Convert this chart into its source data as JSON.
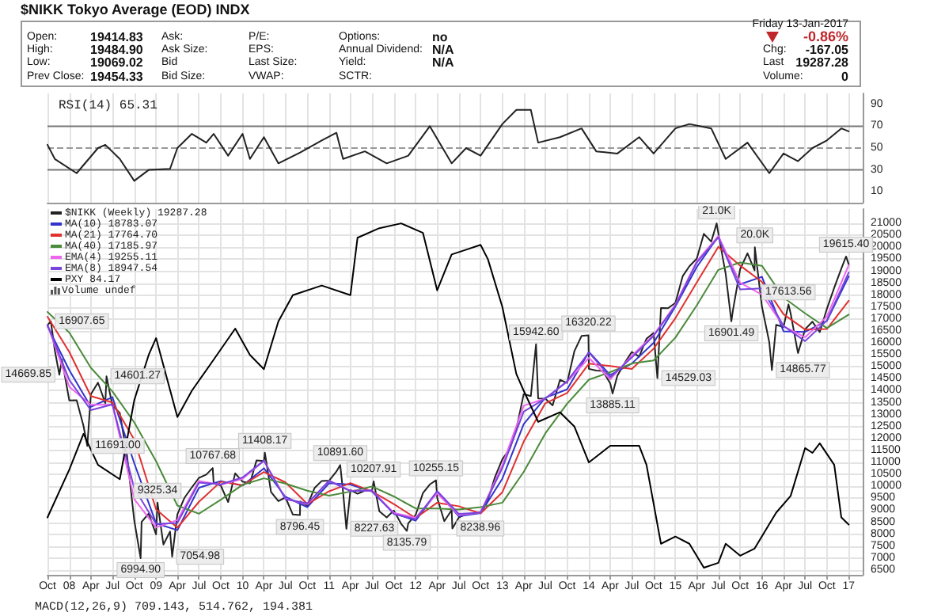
{
  "chart_data": [
    {
      "type": "other",
      "title": "$NIKK Tokyo Average (EOD) INDX",
      "annotations": [
        "Open:",
        "19414.83",
        "Ask:",
        "P/E:",
        "Options:",
        "no",
        "High:",
        "19484.90",
        "Ask Size:",
        "EPS:",
        "Annual Dividend:",
        "N/A",
        "Low:",
        "19069.02",
        "Bid",
        "Last Size:",
        "Yield:",
        "N/A",
        "Prev Close:",
        "19454.33",
        "Bid Size:",
        "VWAP:",
        "SCTR:",
        "Friday 13-Jan-2017",
        "-0.86%",
        "Chg:",
        "-167.05",
        "Last",
        "19287.28",
        "Volume:",
        "0"
      ]
    },
    {
      "type": "line",
      "title": "RSI(14) 65.31",
      "color": "#222222",
      "x": [
        "2007-10",
        "2007-11",
        "2008-02",
        "2008-05",
        "2008-06",
        "2008-08",
        "2008-10",
        "2008-12",
        "2009-03",
        "2009-04",
        "2009-06",
        "2009-08",
        "2009-09",
        "2009-11",
        "2010-01",
        "2010-02",
        "2010-04",
        "2010-06",
        "2010-09",
        "2010-12",
        "2011-02",
        "2011-03",
        "2011-06",
        "2011-09",
        "2011-12",
        "2012-03",
        "2012-06",
        "2012-08",
        "2012-10",
        "2013-01",
        "2013-03",
        "2013-05",
        "2013-06",
        "2013-09",
        "2013-12",
        "2014-02",
        "2014-05",
        "2014-08",
        "2014-10",
        "2015-01",
        "2015-03",
        "2015-06",
        "2015-08",
        "2015-11",
        "2016-02",
        "2016-04",
        "2016-06",
        "2016-08",
        "2016-10",
        "2016-12",
        "2017-01"
      ],
      "values": [
        53,
        40,
        27,
        50,
        53,
        40,
        20,
        30,
        31,
        50,
        63,
        55,
        63,
        43,
        63,
        40,
        60,
        36,
        46,
        57,
        64,
        40,
        47,
        36,
        43,
        70,
        36,
        50,
        43,
        72,
        85,
        85,
        55,
        60,
        68,
        47,
        45,
        60,
        45,
        68,
        72,
        68,
        40,
        55,
        27,
        45,
        38,
        50,
        57,
        68,
        65.31
      ],
      "ylim": [
        0,
        100
      ],
      "yticks": [
        10,
        30,
        50,
        70,
        90
      ],
      "xlim": [
        "2007-10",
        "2017-03"
      ],
      "xticks": [
        {
          "value": "2007-10",
          "label": null
        },
        {
          "value": "2008-01",
          "label": null
        },
        {
          "value": "2008-04",
          "label": null
        },
        {
          "value": "2008-07",
          "label": null
        },
        {
          "value": "2008-10",
          "label": null
        },
        {
          "value": "2009-01",
          "label": null
        },
        {
          "value": "2009-04",
          "label": null
        },
        {
          "value": "2009-07",
          "label": null
        },
        {
          "value": "2009-10",
          "label": null
        },
        {
          "value": "2010-01",
          "label": null
        },
        {
          "value": "2010-04",
          "label": null
        },
        {
          "value": "2010-07",
          "label": null
        },
        {
          "value": "2010-10",
          "label": null
        },
        {
          "value": "2011-01",
          "label": null
        },
        {
          "value": "2011-04",
          "label": null
        },
        {
          "value": "2011-07",
          "label": null
        },
        {
          "value": "2011-10",
          "label": null
        },
        {
          "value": "2012-01",
          "label": null
        },
        {
          "value": "2012-04",
          "label": null
        },
        {
          "value": "2012-07",
          "label": null
        },
        {
          "value": "2012-10",
          "label": null
        },
        {
          "value": "2013-01",
          "label": null
        },
        {
          "value": "2013-04",
          "label": null
        },
        {
          "value": "2013-07",
          "label": null
        },
        {
          "value": "2013-10",
          "label": null
        },
        {
          "value": "2014-01",
          "label": null
        },
        {
          "value": "2014-04",
          "label": null
        },
        {
          "value": "2014-07",
          "label": null
        },
        {
          "value": "2014-10",
          "label": null
        },
        {
          "value": "2015-01",
          "label": null
        },
        {
          "value": "2015-04",
          "label": null
        },
        {
          "value": "2015-07",
          "label": null
        },
        {
          "value": "2015-10",
          "label": null
        },
        {
          "value": "2016-01",
          "label": null
        },
        {
          "value": "2016-04",
          "label": null
        },
        {
          "value": "2016-07",
          "label": null
        },
        {
          "value": "2016-10",
          "label": null
        },
        {
          "value": "2017-01",
          "label": null
        }
      ],
      "tick_labels": "y",
      "grid": "x",
      "ref_lines": [
        {
          "axis": "y",
          "value": 30,
          "color": "#777777"
        },
        {
          "axis": "y",
          "value": 50,
          "color": "#999999",
          "line_style": "dashed"
        },
        {
          "axis": "y",
          "value": 70,
          "color": "#777777"
        }
      ]
    },
    {
      "type": "line",
      "legend": "top left",
      "grid": true,
      "series": [
        {
          "name": "$NIKK (Weekly) 19287.28",
          "color": "#222222",
          "x": [
            "2007-10",
            "2007-10-15",
            "2007-11",
            "2007-11-20",
            "2007-12",
            "2008-01",
            "2008-02",
            "2008-03",
            "2008-03-17",
            "2008-04",
            "2008-05",
            "2008-06",
            "2008-06-06",
            "2008-07",
            "2008-08",
            "2008-09",
            "2008-10",
            "2008-10-28",
            "2008-11",
            "2008-12",
            "2009-01",
            "2009-01-07",
            "2009-02",
            "2009-03",
            "2009-03-10",
            "2009-04",
            "2009-05",
            "2009-06",
            "2009-07",
            "2009-08",
            "2009-08-28",
            "2009-09",
            "2009-10",
            "2009-11",
            "2009-12",
            "2010-01",
            "2010-02",
            "2010-03",
            "2010-04",
            "2010-04-05",
            "2010-05",
            "2010-06",
            "2010-07",
            "2010-08",
            "2010-08-31",
            "2010-09",
            "2010-10",
            "2010-11",
            "2010-12",
            "2011-01",
            "2011-02",
            "2011-02-17",
            "2011-03",
            "2011-03-15",
            "2011-04",
            "2011-05",
            "2011-06",
            "2011-07",
            "2011-07-08",
            "2011-08",
            "2011-09",
            "2011-10",
            "2011-11",
            "2011-11-25",
            "2011-12",
            "2012-01",
            "2012-02",
            "2012-03",
            "2012-03-27",
            "2012-04",
            "2012-05",
            "2012-06",
            "2012-06-04",
            "2012-07",
            "2012-08",
            "2012-09",
            "2012-10",
            "2012-11",
            "2012-12",
            "2013-01",
            "2013-02",
            "2013-03",
            "2013-04",
            "2013-05",
            "2013-05-23",
            "2013-06",
            "2013-07",
            "2013-08",
            "2013-09",
            "2013-10",
            "2013-11",
            "2013-12",
            "2013-12-30",
            "2014-01",
            "2014-02",
            "2014-03",
            "2014-04",
            "2014-04-11",
            "2014-05",
            "2014-06",
            "2014-07",
            "2014-08",
            "2014-09",
            "2014-10",
            "2014-10-17",
            "2014-11",
            "2014-12",
            "2015-01",
            "2015-02",
            "2015-03",
            "2015-04",
            "2015-05",
            "2015-06",
            "2015-06-24",
            "2015-07",
            "2015-08",
            "2015-08-25",
            "2015-09",
            "2015-10",
            "2015-11",
            "2015-12",
            "2015-12-02",
            "2016-01",
            "2016-02",
            "2016-02-12",
            "2016-03",
            "2016-04",
            "2016-04-22",
            "2016-05",
            "2016-06",
            "2016-07",
            "2016-08",
            "2016-09",
            "2016-10",
            "2016-11",
            "2016-12",
            "2016-12-21",
            "2017-01"
          ],
          "values": [
            16737,
            16907.65,
            15680,
            14669.85,
            15308,
            13592,
            13603,
            12526,
            11691,
            13849,
            14338,
            13481,
            14601.27,
            13376,
            13072,
            11259,
            8576,
            6994.9,
            8512,
            8859,
            7994,
            9325.34,
            7568,
            8109,
            7054.98,
            8828,
            9522,
            9958,
            10356,
            10492,
            10767.68,
            10133,
            10034,
            9345,
            10546,
            10198,
            10126,
            11089,
            11057,
            11408.17,
            9768,
            9382,
            9537,
            8824,
            8796.45,
            9369,
            9202,
            9937,
            10228,
            10237,
            10624,
            10891.6,
            9755,
            8227.63,
            9849,
            9693,
            9816,
            9833,
            10207.91,
            8955,
            8700,
            8988,
            8434,
            8135.79,
            8455,
            8802,
            9723,
            10083,
            10255.15,
            9520,
            8542,
            9006,
            8238.96,
            8695,
            8839,
            8870,
            8928,
            9446,
            10395,
            11138,
            11559,
            12398,
            13860,
            13775,
            15942.6,
            13677,
            13668,
            13389,
            14456,
            14327,
            15662,
            16291,
            16320.22,
            14915,
            14841,
            14828,
            14304,
            13885.11,
            14632,
            15162,
            15621,
            15425,
            16174,
            16414,
            14529.03,
            17460,
            17451,
            17674,
            18798,
            19207,
            19520,
            20563,
            20236,
            21000,
            20585,
            18890,
            16901.49,
            17388,
            19083,
            19747,
            19034,
            20000,
            17518,
            16027,
            14865.77,
            16759,
            16666,
            17613.56,
            17235,
            15576,
            16569,
            16887,
            16450,
            17425,
            18308,
            19114,
            19615.4,
            19287.28
          ]
        },
        {
          "name": "MA(10) 18783.07",
          "color": "#3333cc",
          "x": [
            "2007-10",
            "2008-01",
            "2008-04",
            "2008-07",
            "2008-10",
            "2009-01",
            "2009-04",
            "2009-07",
            "2009-10",
            "2010-01",
            "2010-04",
            "2010-07",
            "2010-10",
            "2011-01",
            "2011-04",
            "2011-07",
            "2011-10",
            "2012-01",
            "2012-04",
            "2012-07",
            "2012-10",
            "2013-01",
            "2013-04",
            "2013-07",
            "2013-10",
            "2014-01",
            "2014-04",
            "2014-07",
            "2014-10",
            "2015-01",
            "2015-04",
            "2015-07",
            "2015-10",
            "2016-01",
            "2016-04",
            "2016-07",
            "2016-10",
            "2017-01"
          ],
          "values": [
            16697,
            14860,
            13326,
            13732,
            10969,
            8455,
            8168,
            9945,
            10220,
            10030,
            10757,
            9562,
            9132,
            10134,
            10076,
            9781,
            8881,
            8564,
            9775,
            8748,
            8879,
            10326,
            12606,
            13707,
            14057,
            15623,
            14658,
            15138,
            16004,
            17528,
            19175,
            20461,
            18454,
            18766,
            16484,
            16460,
            16921,
            18783.07
          ]
        },
        {
          "name": "MA(21) 17764.70",
          "color": "#e03030",
          "x": [
            "2007-10",
            "2008-01",
            "2008-04",
            "2008-07",
            "2008-10",
            "2009-01",
            "2009-04",
            "2009-07",
            "2009-10",
            "2010-01",
            "2010-04",
            "2010-07",
            "2010-10",
            "2011-01",
            "2011-04",
            "2011-07",
            "2011-10",
            "2012-01",
            "2012-04",
            "2012-07",
            "2012-10",
            "2013-01",
            "2013-04",
            "2013-07",
            "2013-10",
            "2014-01",
            "2014-04",
            "2014-07",
            "2014-10",
            "2015-01",
            "2015-04",
            "2015-07",
            "2015-10",
            "2016-01",
            "2016-04",
            "2016-07",
            "2016-10",
            "2017-01"
          ],
          "values": [
            17096,
            15621,
            13776,
            13514,
            11953,
            9040,
            8272,
            9355,
            10195,
            10051,
            10603,
            10167,
            9263,
            9795,
            10139,
            9789,
            9258,
            8676,
            9317,
            9169,
            8868,
            9755,
            11870,
            13476,
            13903,
            15130,
            15036,
            14909,
            15759,
            17035,
            18530,
            20022,
            19236,
            18554,
            17201,
            16561,
            16581,
            17764.7
          ]
        },
        {
          "name": "MA(40) 17185.97",
          "color": "#4a8a3a",
          "x": [
            "2007-10",
            "2008-01",
            "2008-04",
            "2008-07",
            "2008-10",
            "2009-01",
            "2009-04",
            "2009-07",
            "2009-10",
            "2010-01",
            "2010-04",
            "2010-07",
            "2010-10",
            "2011-01",
            "2011-04",
            "2011-07",
            "2011-10",
            "2012-01",
            "2012-04",
            "2012-07",
            "2012-10",
            "2013-01",
            "2013-04",
            "2013-07",
            "2013-10",
            "2014-01",
            "2014-04",
            "2014-07",
            "2014-10",
            "2015-01",
            "2015-04",
            "2015-07",
            "2015-10",
            "2016-01",
            "2016-04",
            "2016-07",
            "2016-10",
            "2017-01"
          ],
          "values": [
            17294,
            16437,
            14961,
            13973,
            12676,
            11052,
            9197,
            8856,
            9444,
            10065,
            10336,
            10116,
            9817,
            9609,
            9781,
            9997,
            9579,
            9075,
            9073,
            9029,
            9134,
            9318,
            10604,
            12213,
            13457,
            14462,
            14779,
            15140,
            15267,
            16224,
            17569,
            19055,
            19363,
            19227,
            17901,
            17237,
            16622,
            17185.97
          ]
        },
        {
          "name": "EMA(4) 19255.11",
          "color": "#ee66ee",
          "x": [
            "2007-10",
            "2008-01",
            "2008-04",
            "2008-07",
            "2008-10",
            "2009-01",
            "2009-04",
            "2009-07",
            "2009-10",
            "2010-01",
            "2010-04",
            "2010-07",
            "2010-10",
            "2011-01",
            "2011-04",
            "2011-07",
            "2011-10",
            "2012-01",
            "2012-04",
            "2012-07",
            "2012-10",
            "2013-01",
            "2013-04",
            "2013-07",
            "2013-10",
            "2014-01",
            "2014-04",
            "2014-07",
            "2014-10",
            "2015-01",
            "2015-04",
            "2015-07",
            "2015-10",
            "2016-01",
            "2016-04",
            "2016-07",
            "2016-10",
            "2017-01"
          ],
          "values": [
            16753,
            14164,
            13408,
            13411,
            9470,
            8282,
            8588,
            10223,
            10067,
            10314,
            11068,
            9485,
            9258,
            10234,
            9818,
            9827,
            8892,
            8686,
            9708,
            8799,
            8909,
            10890,
            13373,
            13671,
            14370,
            15374,
            14479,
            15468,
            16334,
            17600,
            19416,
            20469,
            18518,
            18023,
            16697,
            16238,
            17100,
            19255.11
          ]
        },
        {
          "name": "EMA(8) 18947.54",
          "color": "#7744dd",
          "x": [
            "2007-10",
            "2008-01",
            "2008-04",
            "2008-07",
            "2008-10",
            "2009-01",
            "2009-04",
            "2009-07",
            "2009-10",
            "2010-01",
            "2010-04",
            "2010-07",
            "2010-10",
            "2011-01",
            "2011-04",
            "2011-07",
            "2011-10",
            "2012-01",
            "2012-04",
            "2012-07",
            "2012-10",
            "2013-01",
            "2013-04",
            "2013-07",
            "2013-10",
            "2014-01",
            "2014-04",
            "2014-07",
            "2014-10",
            "2015-01",
            "2015-04",
            "2015-07",
            "2015-10",
            "2016-01",
            "2016-04",
            "2016-07",
            "2016-10",
            "2017-01"
          ],
          "values": [
            16761,
            14450,
            13188,
            13429,
            9918,
            8427,
            8469,
            10157,
            10084,
            10372,
            11073,
            9460,
            9286,
            10233,
            9802,
            9825,
            8844,
            8629,
            9802,
            8851,
            8899,
            10767,
            13129,
            13673,
            14392,
            15603,
            14566,
            15392,
            16294,
            17563,
            19364,
            20411,
            18236,
            18276,
            16713,
            16073,
            16938,
            18947.54
          ]
        },
        {
          "name": "PXY 84.17",
          "color": "#000000",
          "x": [
            "2007-10",
            "2008-01",
            "2008-03",
            "2008-05",
            "2008-08",
            "2008-10",
            "2008-12",
            "2009-01",
            "2009-04",
            "2009-06",
            "2009-09",
            "2009-12",
            "2010-02",
            "2010-04",
            "2010-06",
            "2010-08",
            "2010-12",
            "2011-04",
            "2011-05",
            "2011-08",
            "2011-11",
            "2012-02",
            "2012-04",
            "2012-06",
            "2012-08",
            "2012-10",
            "2012-11",
            "2013-01",
            "2013-03",
            "2013-04",
            "2013-06",
            "2013-09",
            "2013-11",
            "2014-01",
            "2014-04",
            "2014-08",
            "2014-09",
            "2014-11",
            "2015-01",
            "2015-03",
            "2015-05",
            "2015-07",
            "2015-08",
            "2015-10",
            "2015-12",
            "2016-03",
            "2016-05",
            "2016-07",
            "2016-08",
            "2016-09",
            "2016-11",
            "2016-12",
            "2017-01"
          ],
          "values": [
            8700,
            10700,
            12200,
            10900,
            10300,
            13600,
            15500,
            16200,
            12900,
            14000,
            15300,
            16600,
            15500,
            14900,
            16900,
            18000,
            18400,
            18000,
            20400,
            20800,
            21000,
            20600,
            18200,
            19700,
            19900,
            20100,
            19500,
            17500,
            14700,
            14000,
            12700,
            13100,
            12500,
            11000,
            11700,
            11700,
            10900,
            7600,
            7900,
            7600,
            6600,
            6800,
            7600,
            7100,
            7400,
            8900,
            9600,
            11600,
            11400,
            11800,
            10900,
            8700,
            8400
          ]
        }
      ],
      "ylim": [
        6300,
        21600
      ],
      "yticks": [
        6500,
        7000,
        7500,
        8000,
        8500,
        9000,
        9500,
        10000,
        10500,
        11000,
        11500,
        12000,
        12500,
        13000,
        13500,
        14000,
        14500,
        15000,
        15500,
        16000,
        16500,
        17000,
        17500,
        18000,
        18500,
        19000,
        19500,
        20000,
        20500,
        21000
      ],
      "xlim": [
        "2007-10",
        "2017-03"
      ],
      "xticks": [
        {
          "value": "2007-10",
          "label": "Oct"
        },
        {
          "value": "2008-01",
          "label": "08"
        },
        {
          "value": "2008-04",
          "label": "Apr"
        },
        {
          "value": "2008-07",
          "label": "Jul"
        },
        {
          "value": "2008-10",
          "label": "Oct"
        },
        {
          "value": "2009-01",
          "label": "09"
        },
        {
          "value": "2009-04",
          "label": "Apr"
        },
        {
          "value": "2009-07",
          "label": "Jul"
        },
        {
          "value": "2009-10",
          "label": "Oct"
        },
        {
          "value": "2010-01",
          "label": "10"
        },
        {
          "value": "2010-04",
          "label": "Apr"
        },
        {
          "value": "2010-07",
          "label": "Jul"
        },
        {
          "value": "2010-10",
          "label": "Oct"
        },
        {
          "value": "2011-01",
          "label": "11"
        },
        {
          "value": "2011-04",
          "label": "Apr"
        },
        {
          "value": "2011-07",
          "label": "Jul"
        },
        {
          "value": "2011-10",
          "label": "Oct"
        },
        {
          "value": "2012-01",
          "label": "12"
        },
        {
          "value": "2012-04",
          "label": "Apr"
        },
        {
          "value": "2012-07",
          "label": "Jul"
        },
        {
          "value": "2012-10",
          "label": "Oct"
        },
        {
          "value": "2013-01",
          "label": "13"
        },
        {
          "value": "2013-04",
          "label": "Apr"
        },
        {
          "value": "2013-07",
          "label": "Jul"
        },
        {
          "value": "2013-10",
          "label": "Oct"
        },
        {
          "value": "2014-01",
          "label": "14"
        },
        {
          "value": "2014-04",
          "label": "Apr"
        },
        {
          "value": "2014-07",
          "label": "Jul"
        },
        {
          "value": "2014-10",
          "label": "Oct"
        },
        {
          "value": "2015-01",
          "label": "15"
        },
        {
          "value": "2015-04",
          "label": "Apr"
        },
        {
          "value": "2015-07",
          "label": "Jul"
        },
        {
          "value": "2015-10",
          "label": "Oct"
        },
        {
          "value": "2016-01",
          "label": "16"
        },
        {
          "value": "2016-04",
          "label": "Apr"
        },
        {
          "value": "2016-07",
          "label": "Jul"
        },
        {
          "value": "2016-10",
          "label": "Oct"
        },
        {
          "value": "2017-01",
          "label": "17"
        }
      ],
      "annotations": [
        {
          "text": "16907.65",
          "x": "2007-10-15",
          "y": 16907.65
        },
        {
          "text": "14669.85",
          "x": "2007-11-20",
          "y": 14669.85
        },
        {
          "text": "11691.00",
          "x": "2008-03-17",
          "y": 11691
        },
        {
          "text": "14601.27",
          "x": "2008-06-06",
          "y": 14601.27
        },
        {
          "text": "6994.90",
          "x": "2008-10-28",
          "y": 6994.9
        },
        {
          "text": "9325.34",
          "x": "2009-01-07",
          "y": 9325.34
        },
        {
          "text": "7054.98",
          "x": "2009-03-10",
          "y": 7054.98
        },
        {
          "text": "10767.68",
          "x": "2009-08-28",
          "y": 10767.68
        },
        {
          "text": "11408.17",
          "x": "2010-04-05",
          "y": 11408.17
        },
        {
          "text": "8796.45",
          "x": "2010-08-31",
          "y": 8796.45
        },
        {
          "text": "10891.60",
          "x": "2011-02-17",
          "y": 10891.6
        },
        {
          "text": "8227.63",
          "x": "2011-03-15",
          "y": 8227.63
        },
        {
          "text": "10207.91",
          "x": "2011-07-08",
          "y": 10207.91
        },
        {
          "text": "8135.79",
          "x": "2011-11-25",
          "y": 8135.79
        },
        {
          "text": "10255.15",
          "x": "2012-03-27",
          "y": 10255.15
        },
        {
          "text": "8238.96",
          "x": "2012-06-04",
          "y": 8238.96
        },
        {
          "text": "15942.60",
          "x": "2013-05-23",
          "y": 15942.6
        },
        {
          "text": "16320.22",
          "x": "2013-12-30",
          "y": 16320.22
        },
        {
          "text": "13885.11",
          "x": "2014-04-11",
          "y": 13885.11
        },
        {
          "text": "14529.03",
          "x": "2014-10-17",
          "y": 14529.03
        },
        {
          "text": "21.0K",
          "x": "2015-06-24",
          "y": 21000
        },
        {
          "text": "16901.49",
          "x": "2015-08-25",
          "y": 16901.49
        },
        {
          "text": "20.0K",
          "x": "2015-12-02",
          "y": 20000
        },
        {
          "text": "14865.77",
          "x": "2016-02-12",
          "y": 14865.77
        },
        {
          "text": "17613.56",
          "x": "2016-04-22",
          "y": 17613.56
        },
        {
          "text": "19615.40",
          "x": "2016-12-21",
          "y": 19615.4
        },
        "Volume undef",
        "MACD(12,26,9) 709.143, 514.762, 194.381"
      ]
    }
  ]
}
